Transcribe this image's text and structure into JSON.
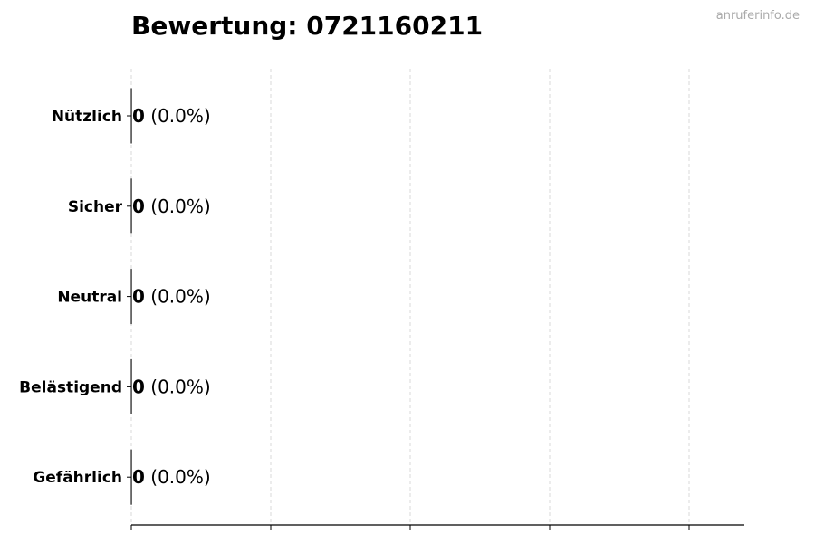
{
  "title": "Bewertung: 0721160211",
  "watermark": "anruferinfo.de",
  "chart_data": {
    "type": "bar",
    "orientation": "horizontal",
    "categories": [
      "Nützlich",
      "Sicher",
      "Neutral",
      "Belästigend",
      "Gefährlich"
    ],
    "values": [
      0,
      0,
      0,
      0,
      0
    ],
    "data_labels": [
      {
        "count": "0",
        "percent": "(0.0%)"
      },
      {
        "count": "0",
        "percent": "(0.0%)"
      },
      {
        "count": "0",
        "percent": "(0.0%)"
      },
      {
        "count": "0",
        "percent": "(0.0%)"
      },
      {
        "count": "0",
        "percent": "(0.0%)"
      }
    ],
    "xlabel": "",
    "ylabel": "",
    "grid": "vertical dashed",
    "colors": {
      "grid": "#d9d9d9",
      "bar_edge": "#000000",
      "axis": "#000000"
    }
  }
}
